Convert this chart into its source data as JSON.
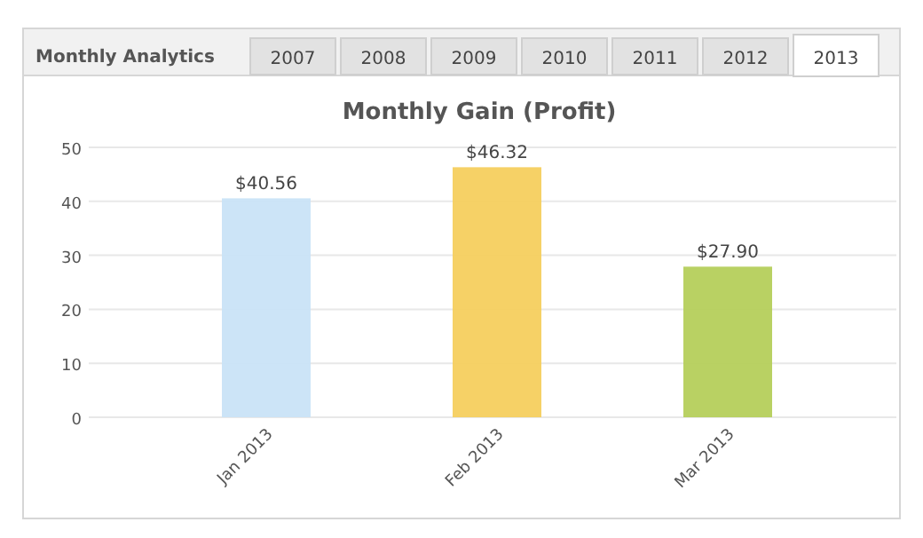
{
  "chart_data": {
    "type": "bar",
    "title": "Monthly Gain (Profit)",
    "categories": [
      "Jan 2013",
      "Feb 2013",
      "Mar 2013"
    ],
    "values": [
      40.56,
      46.32,
      27.9
    ],
    "colors": [
      "#c9e3f7",
      "#f5cf5e",
      "#b5cf5b"
    ],
    "value_labels": [
      "$40.56",
      "$46.32",
      "$27.90"
    ],
    "ylim": [
      0,
      50
    ],
    "yticks": [
      0,
      10,
      20,
      30,
      40,
      50
    ],
    "grid": "y",
    "annotations": [
      "Monthly Analytics",
      "2007",
      "2008",
      "2009",
      "2010",
      "2011",
      "2012",
      "2013"
    ]
  }
}
